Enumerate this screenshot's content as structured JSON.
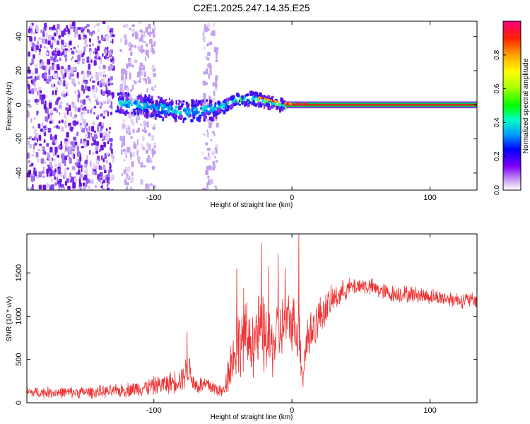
{
  "figure_title": "C2E1.2025.247.14.35.E25",
  "chart_data": [
    {
      "type": "heatmap",
      "title": "C2E1.2025.247.14.35.E25",
      "xlabel": "Height of straight line (km)",
      "ylabel": "Frequency (Hz)",
      "xlim": [
        -192,
        134
      ],
      "ylim": [
        -50,
        49
      ],
      "xticks": [
        -100,
        0,
        100
      ],
      "xtick_labels": [
        "-100",
        "0",
        "100"
      ],
      "yticks": [
        -40,
        -20,
        0,
        20,
        40
      ],
      "ytick_labels": [
        "-40",
        "-20",
        "0",
        "20",
        "40"
      ],
      "colorbar": {
        "label": "Normalized spectral amplitude",
        "range": [
          0,
          1
        ],
        "ticks": [
          0.0,
          0.2,
          0.4,
          0.6,
          0.8
        ],
        "tick_labels": [
          "0.0",
          "0.2",
          "0.4",
          "0.6",
          "0.8"
        ],
        "colors": [
          "#ffffff",
          "#d0b0f0",
          "#8000ff",
          "#0000ff",
          "#00a0ff",
          "#00ffc0",
          "#00ff00",
          "#a0ff00",
          "#ffff00",
          "#ffa000",
          "#ff2000",
          "#ff0080"
        ]
      },
      "signal_track": [
        {
          "x": -125,
          "f": 2
        },
        {
          "x": -110,
          "f": 1
        },
        {
          "x": -95,
          "f": -1
        },
        {
          "x": -80,
          "f": -3
        },
        {
          "x": -65,
          "f": -2
        },
        {
          "x": -50,
          "f": 0
        },
        {
          "x": -40,
          "f": 4
        },
        {
          "x": -30,
          "f": 5
        },
        {
          "x": -20,
          "f": 3
        },
        {
          "x": -10,
          "f": 1
        },
        {
          "x": 0,
          "f": 0
        },
        {
          "x": 134,
          "f": 0
        }
      ],
      "noise_regions": [
        [
          -192,
          -130
        ],
        [
          -125,
          -100
        ],
        [
          -65,
          -55
        ]
      ]
    },
    {
      "type": "line",
      "xlabel": "Height of straight line (km)",
      "ylabel": "SNR (10 * v/v)",
      "xlim": [
        -192,
        134
      ],
      "ylim": [
        0,
        1950
      ],
      "xticks": [
        -100,
        0,
        100
      ],
      "xtick_labels": [
        "-100",
        "0",
        "100"
      ],
      "yticks": [
        0,
        500,
        1000,
        1500
      ],
      "ytick_labels": [
        "0",
        "500",
        "1000",
        "1500"
      ],
      "color": "#ee3333",
      "envelope": {
        "x": [
          -192,
          -160,
          -130,
          -110,
          -90,
          -80,
          -75,
          -70,
          -60,
          -50,
          -45,
          -40,
          -35,
          -30,
          -25,
          -20,
          -15,
          -10,
          -5,
          0,
          5,
          8,
          10,
          20,
          30,
          40,
          50,
          60,
          70,
          80,
          90,
          100,
          110,
          120,
          134
        ],
        "mean": [
          120,
          120,
          130,
          170,
          220,
          280,
          400,
          200,
          200,
          120,
          420,
          650,
          750,
          700,
          800,
          750,
          650,
          800,
          900,
          950,
          800,
          300,
          700,
          1000,
          1200,
          1320,
          1360,
          1320,
          1260,
          1260,
          1250,
          1230,
          1210,
          1190,
          1180
        ],
        "spread": [
          70,
          70,
          80,
          100,
          130,
          160,
          220,
          120,
          120,
          80,
          300,
          400,
          450,
          420,
          500,
          480,
          420,
          420,
          380,
          350,
          400,
          200,
          350,
          250,
          170,
          120,
          110,
          110,
          110,
          110,
          100,
          100,
          100,
          100,
          100
        ]
      },
      "spikes": [
        {
          "x": -76,
          "y": 820
        },
        {
          "x": -40,
          "y": 1550
        },
        {
          "x": -35,
          "y": 1330
        },
        {
          "x": -22,
          "y": 1850
        },
        {
          "x": -17,
          "y": 1580
        },
        {
          "x": -10,
          "y": 1720
        },
        {
          "x": -5,
          "y": 1560
        },
        {
          "x": 5,
          "y": 1950
        }
      ]
    }
  ]
}
